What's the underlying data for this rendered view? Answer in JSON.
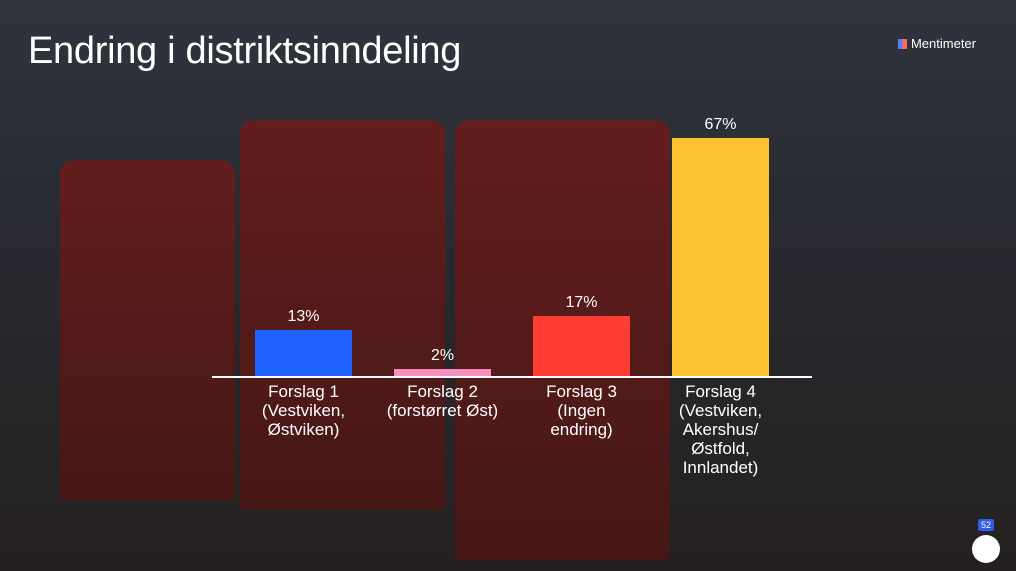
{
  "brand": "Mentimeter",
  "participants": "52",
  "chart_data": {
    "type": "bar",
    "title": "Endring i distriktsinndeling",
    "categories": [
      "Forslag 1 (Vestviken, Østviken)",
      "Forslag 2 (forstørret Øst)",
      "Forslag 3 (Ingen endring)",
      "Forslag 4 (Vestviken, Akershus/ Østfold, Innlandet)"
    ],
    "values": [
      13,
      2,
      17,
      67
    ],
    "value_labels": [
      "13%",
      "2%",
      "17%",
      "67%"
    ],
    "colors": [
      "#1f62ff",
      "#f78fc0",
      "#ff3d33",
      "#fdc22f"
    ]
  }
}
